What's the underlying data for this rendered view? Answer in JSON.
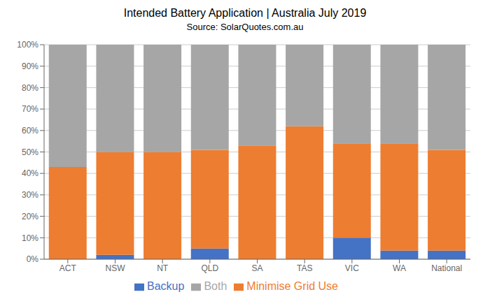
{
  "chart_data": {
    "type": "bar",
    "title": "Intended Battery Application | Australia July 2019",
    "subtitle": "Source: SolarQuotes.com.au",
    "categories": [
      "ACT",
      "NSW",
      "NT",
      "QLD",
      "SA",
      "TAS",
      "VIC",
      "WA",
      "National"
    ],
    "series": [
      {
        "name": "Backup",
        "color": "#4472c4",
        "values": [
          0,
          2,
          0,
          5,
          0,
          0,
          10,
          4,
          4
        ]
      },
      {
        "name": "Minimise Grid Use",
        "color": "#ed7d31",
        "values": [
          43,
          48,
          50,
          46,
          53,
          62,
          44,
          50,
          47
        ]
      },
      {
        "name": "Both",
        "color": "#a6a6a6",
        "values": [
          57,
          50,
          50,
          49,
          47,
          38,
          46,
          46,
          49
        ]
      }
    ],
    "stacked": true,
    "ylim": [
      0,
      100
    ],
    "yticks": [
      {
        "value": 0,
        "label": "0%"
      },
      {
        "value": 10,
        "label": "10%"
      },
      {
        "value": 20,
        "label": "20%"
      },
      {
        "value": 30,
        "label": "30%"
      },
      {
        "value": 40,
        "label": "40%"
      },
      {
        "value": 50,
        "label": "50%"
      },
      {
        "value": 60,
        "label": "60%"
      },
      {
        "value": 70,
        "label": "70%"
      },
      {
        "value": 80,
        "label": "80%"
      },
      {
        "value": 90,
        "label": "90%"
      },
      {
        "value": 100,
        "label": "100%"
      }
    ],
    "grid": true,
    "legend": "bottom"
  }
}
